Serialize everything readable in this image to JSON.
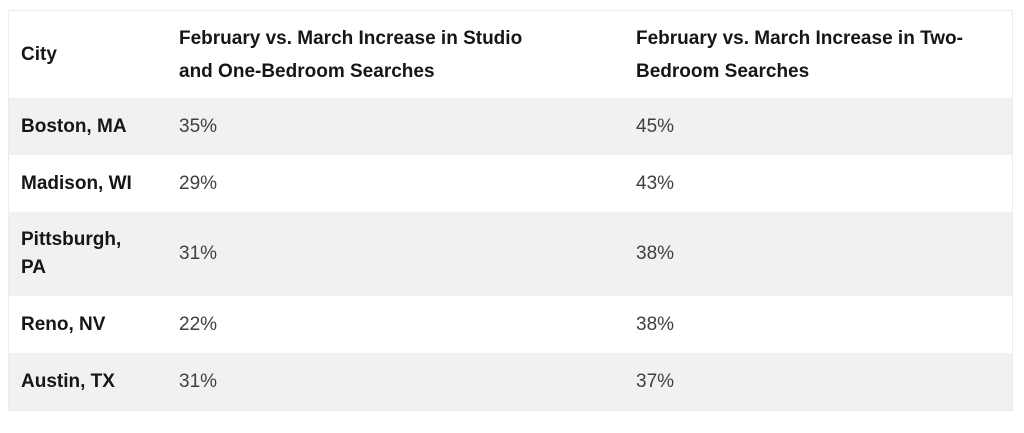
{
  "table": {
    "columns": [
      {
        "label": "City"
      },
      {
        "label": "February vs. March Increase in Studio and One-Bedroom Searches"
      },
      {
        "label": "February vs. March Increase in Two-Bedroom Searches"
      }
    ],
    "rows": [
      {
        "city": "Boston, MA",
        "studio_one_bedroom": "35%",
        "two_bedroom": "45%"
      },
      {
        "city": "Madison, WI",
        "studio_one_bedroom": "29%",
        "two_bedroom": "43%"
      },
      {
        "city": "Pittsburgh, PA",
        "studio_one_bedroom": "31%",
        "two_bedroom": "38%"
      },
      {
        "city": "Reno, NV",
        "studio_one_bedroom": "22%",
        "two_bedroom": "38%"
      },
      {
        "city": "Austin, TX",
        "studio_one_bedroom": "31%",
        "two_bedroom": "37%"
      }
    ],
    "colors": {
      "row_alt_bg": "#f1f1f2",
      "header_text": "#161616",
      "value_text": "#3f3f3f",
      "border": "#ececec"
    }
  }
}
